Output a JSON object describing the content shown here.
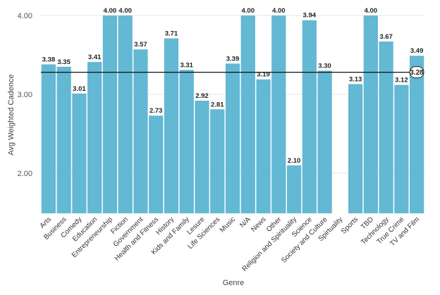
{
  "chart_data": {
    "type": "bar",
    "xlabel": "Genre",
    "ylabel": "Avg Weighted Cadence",
    "ylim": [
      1.5,
      4.0
    ],
    "yticks": [
      "4.00",
      "3.00",
      "2.00"
    ],
    "bar_color": "#63b8d4",
    "grid": true,
    "categories": [
      "Arts",
      "Business",
      "Comedy",
      "Education",
      "Entrepreneurship",
      "Fiction",
      "Government",
      "Health and Fitness",
      "History",
      "Kids and Family",
      "Lesure",
      "Life Sciences",
      "Music",
      "N/A",
      "News",
      "Other",
      "Religion and Spirituality",
      "Science",
      "Society and Culture",
      "Spirtuality",
      "Sports",
      "TBD",
      "Technology",
      "True Crime",
      "TV and Film"
    ],
    "values": [
      3.38,
      3.35,
      3.01,
      3.41,
      4.0,
      4.0,
      3.57,
      2.73,
      3.71,
      3.31,
      2.92,
      2.81,
      3.39,
      4.0,
      3.19,
      4.0,
      2.1,
      3.94,
      3.3,
      null,
      3.13,
      4.0,
      3.67,
      3.12,
      3.49
    ],
    "labels": [
      "3.38",
      "3.35",
      "3.01",
      "3.41",
      "4.00",
      "4.00",
      "3.57",
      "2.73",
      "3.71",
      "3.31",
      "2.92",
      "2.81",
      "3.39",
      "4.00",
      "3.19",
      "4.00",
      "2.10",
      "3.94",
      "3.30",
      "",
      "3.13",
      "4.00",
      "3.67",
      "3.12",
      "3.49"
    ],
    "reference_line": {
      "value": 3.28,
      "label": "3.28"
    }
  }
}
